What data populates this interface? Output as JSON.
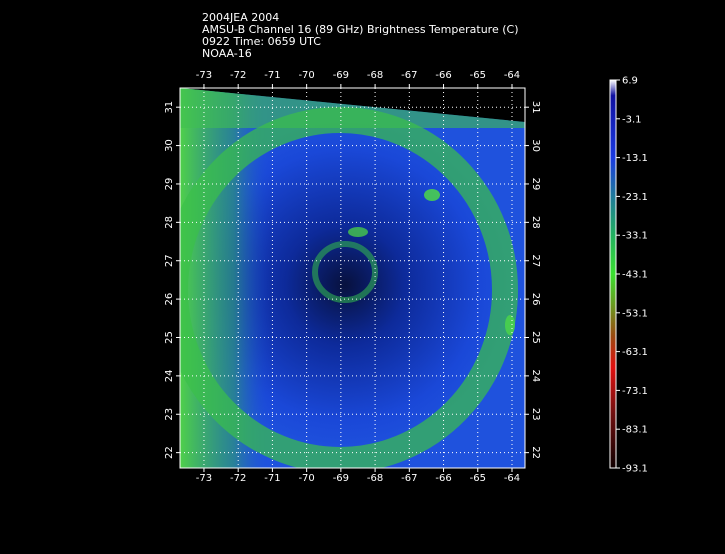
{
  "header": {
    "lines": [
      "2004JEA 2004",
      "AMSU-B Channel 16 (89 GHz) Brightness Temperature (C)",
      "0922 Time: 0659 UTC",
      "NOAA-16"
    ]
  },
  "map": {
    "xlim": [
      -73.7,
      -63.62
    ],
    "ylim": [
      21.6,
      31.5
    ],
    "xticks": [
      -73,
      -72,
      -71,
      -70,
      -69,
      -68,
      -67,
      -66,
      -65,
      -64
    ],
    "yticks": [
      22,
      23,
      24,
      25,
      26,
      27,
      28,
      29,
      30,
      31
    ],
    "grid": true
  },
  "colorbar": {
    "lim": [
      -93.1,
      6.9
    ],
    "ticks": [
      6.9,
      -3.1,
      -13.1,
      -23.1,
      -33.1,
      -43.1,
      -53.1,
      -63.1,
      -73.1,
      -83.1,
      -93.1
    ]
  }
}
